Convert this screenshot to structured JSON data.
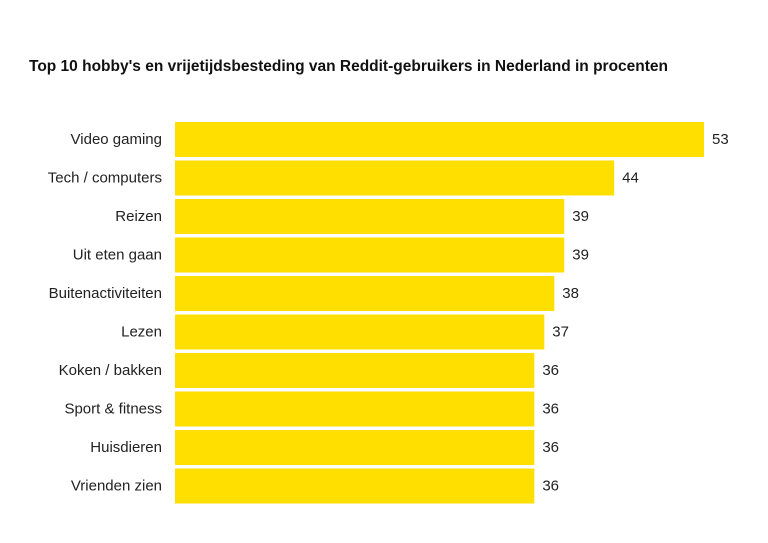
{
  "chart_data": {
    "type": "bar",
    "orientation": "horizontal",
    "title": "Top 10 hobby's en vrijetijdsbesteding van Reddit-gebruikers in Nederland in procenten",
    "categories": [
      "Video gaming",
      "Tech / computers",
      "Reizen",
      "Uit eten gaan",
      "Buitenactiviteiten",
      "Lezen",
      "Koken / bakken",
      "Sport & fitness",
      "Huisdieren",
      "Vrienden zien"
    ],
    "values": [
      53,
      44,
      39,
      39,
      38,
      37,
      36,
      36,
      36,
      36
    ],
    "data_labels": [
      "53",
      "44",
      "39",
      "39",
      "38",
      "37",
      "36",
      "36",
      "36",
      "36"
    ],
    "xlim": [
      0,
      53
    ],
    "grid": false,
    "legend": "none",
    "colors": {
      "bar": "#FFDF00",
      "text": "#222222"
    }
  }
}
